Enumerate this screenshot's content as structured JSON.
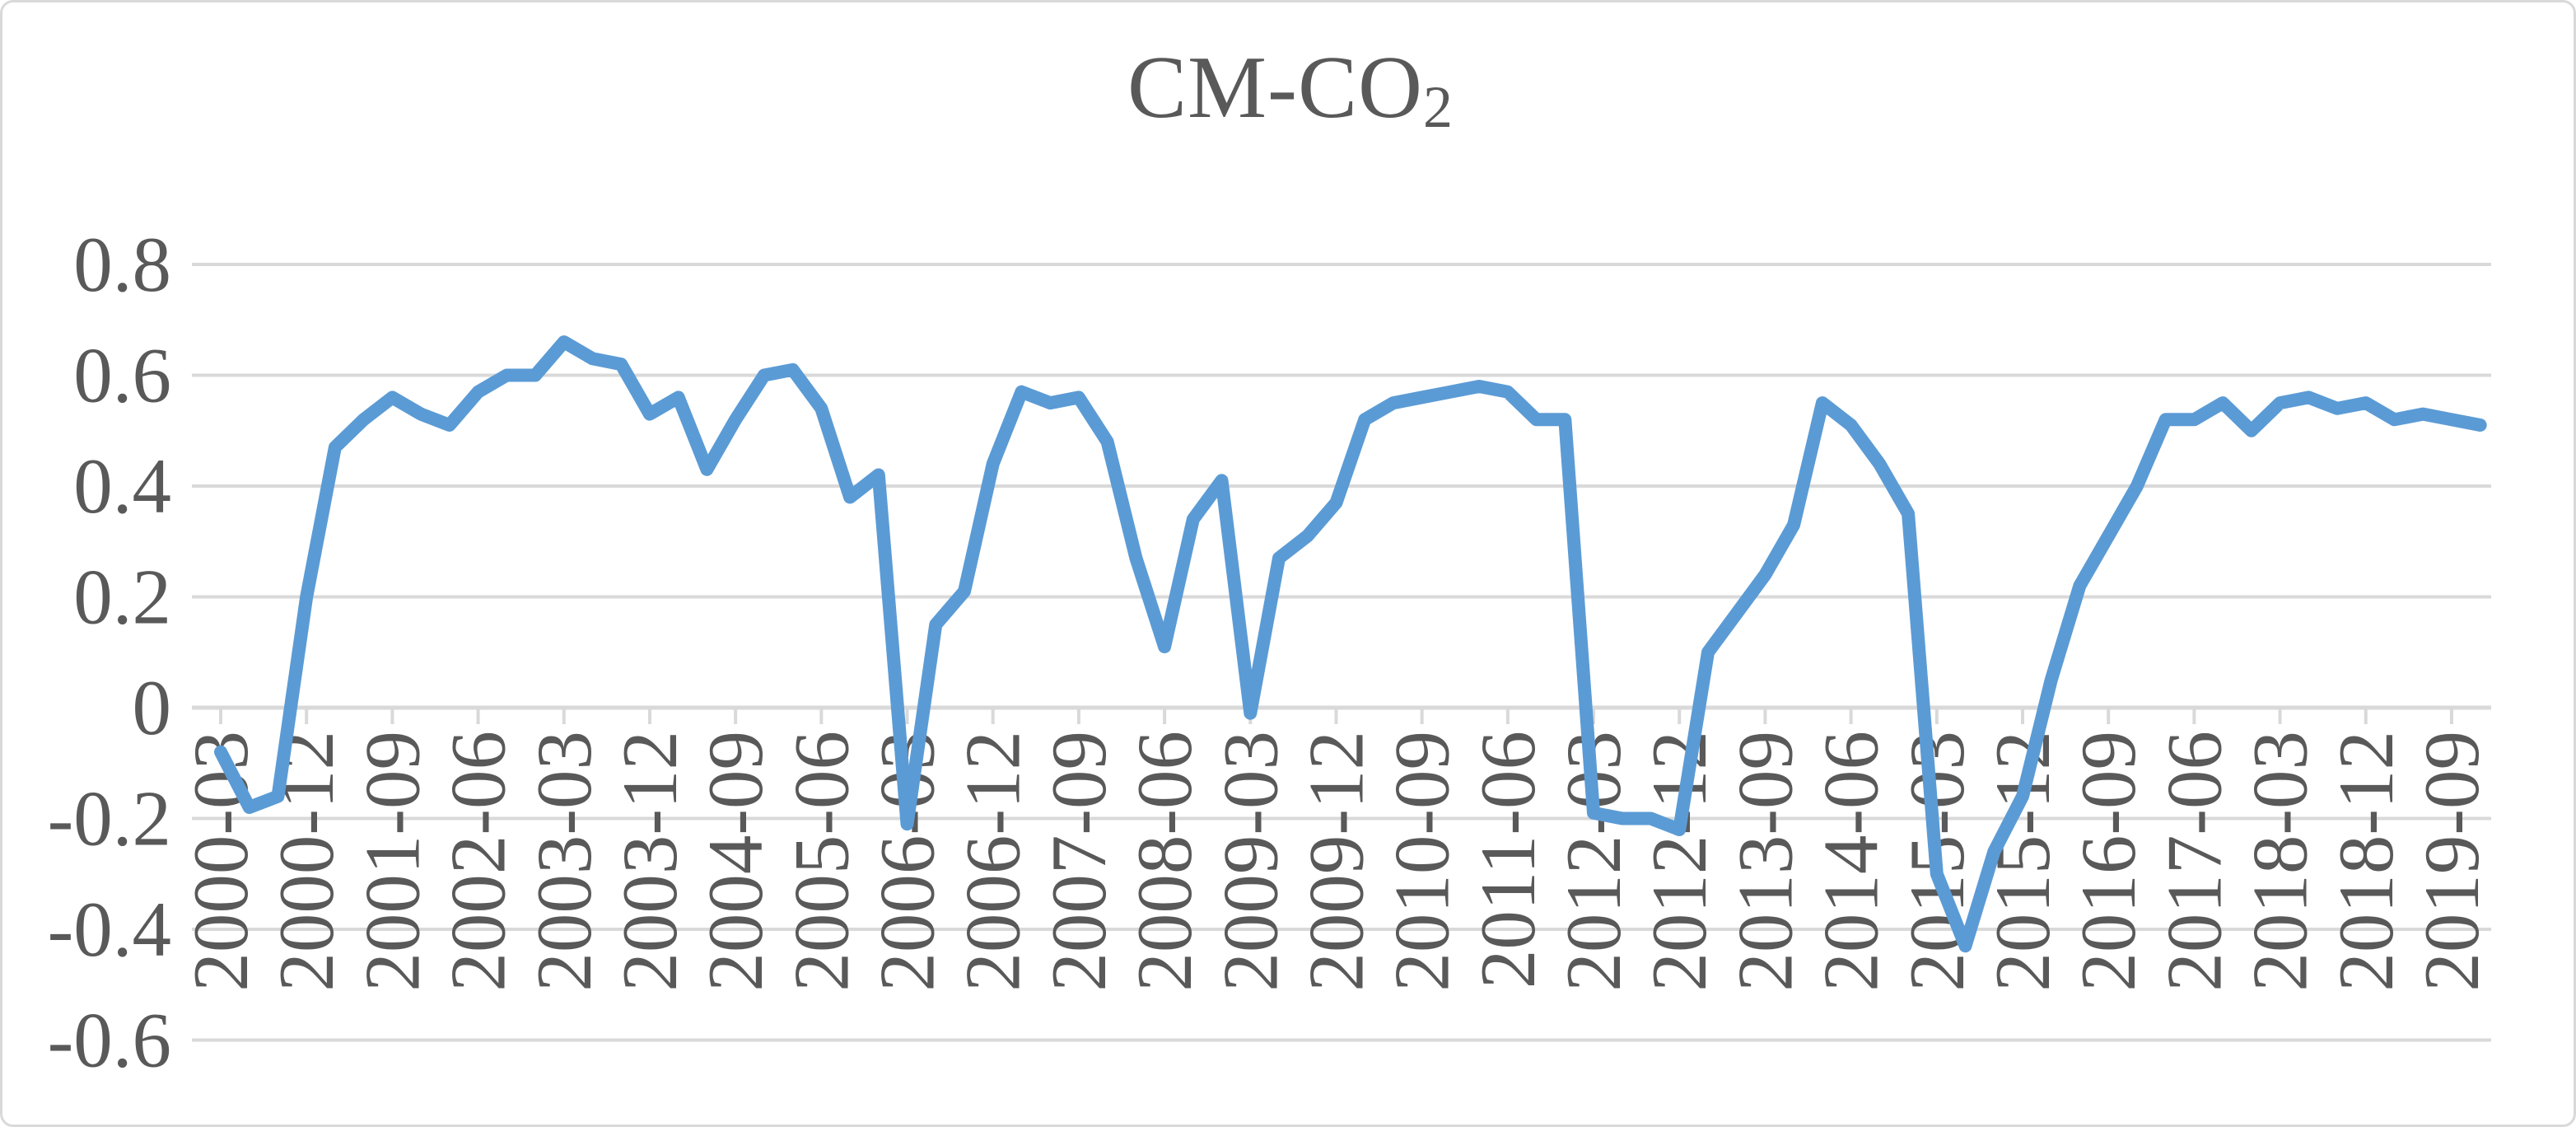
{
  "chart": {
    "title_main": "CM-CO",
    "title_sub": "2"
  },
  "chart_data": {
    "type": "line",
    "title": "CM-CO2 (2 subscript)",
    "xlabel": "",
    "ylabel": "",
    "legend": "none",
    "grid": "horizontal",
    "line_color": "#5B9BD5",
    "grid_color": "#D9D9D9",
    "text_color": "#595959",
    "x_label_rotation": -90,
    "ylim": [
      -0.6,
      0.8
    ],
    "y_ticks": {
      "labels": [
        "0.8",
        "0.6",
        "0.4",
        "0.2",
        "0",
        "-0.2",
        "-0.4",
        "-0.6"
      ],
      "values": [
        0.8,
        0.6,
        0.4,
        0.2,
        0,
        -0.2,
        -0.4,
        -0.6
      ]
    },
    "x_tick_labels": [
      "2000-03",
      "2000-12",
      "2001-09",
      "2002-06",
      "2003-03",
      "2003-12",
      "2004-09",
      "2005-06",
      "2006-03",
      "2006-12",
      "2007-09",
      "2008-06",
      "2009-03",
      "2009-12",
      "2010-09",
      "2011-06",
      "2012-03",
      "2012-12",
      "2013-09",
      "2014-06",
      "2015-03",
      "2015-12",
      "2016-09",
      "2017-06",
      "2018-03",
      "2018-12",
      "2019-09"
    ],
    "categories": [
      "2000-03",
      "2000-06",
      "2000-09",
      "2000-12",
      "2001-03",
      "2001-06",
      "2001-09",
      "2001-12",
      "2002-03",
      "2002-06",
      "2002-09",
      "2002-12",
      "2003-03",
      "2003-06",
      "2003-09",
      "2003-12",
      "2004-03",
      "2004-06",
      "2004-09",
      "2004-12",
      "2005-03",
      "2005-06",
      "2005-09",
      "2005-12",
      "2006-03",
      "2006-06",
      "2006-09",
      "2006-12",
      "2007-03",
      "2007-06",
      "2007-09",
      "2007-12",
      "2008-03",
      "2008-06",
      "2008-09",
      "2008-12",
      "2009-03",
      "2009-06",
      "2009-09",
      "2009-12",
      "2010-03",
      "2010-06",
      "2010-09",
      "2010-12",
      "2011-03",
      "2011-06",
      "2011-09",
      "2011-12",
      "2012-03",
      "2012-06",
      "2012-09",
      "2012-12",
      "2013-03",
      "2013-06",
      "2013-09",
      "2013-12",
      "2014-03",
      "2014-06",
      "2014-09",
      "2014-12",
      "2015-03",
      "2015-06",
      "2015-09",
      "2015-12",
      "2016-03",
      "2016-06",
      "2016-09",
      "2016-12",
      "2017-03",
      "2017-06",
      "2017-09",
      "2017-12",
      "2018-03",
      "2018-06",
      "2018-09",
      "2018-12",
      "2019-03",
      "2019-06",
      "2019-09",
      "2019-12"
    ],
    "values": [
      -0.08,
      -0.18,
      -0.16,
      0.2,
      0.47,
      0.52,
      0.56,
      0.53,
      0.51,
      0.57,
      0.6,
      0.6,
      0.66,
      0.63,
      0.62,
      0.53,
      0.56,
      0.43,
      0.52,
      0.6,
      0.61,
      0.54,
      0.38,
      0.42,
      -0.21,
      0.15,
      0.21,
      0.44,
      0.57,
      0.55,
      0.56,
      0.48,
      0.27,
      0.11,
      0.34,
      0.41,
      -0.01,
      0.27,
      0.31,
      0.37,
      0.52,
      0.55,
      0.56,
      0.57,
      0.58,
      0.57,
      0.52,
      0.52,
      -0.19,
      -0.2,
      -0.2,
      -0.22,
      0.1,
      0.17,
      0.24,
      0.33,
      0.55,
      0.51,
      0.44,
      0.35,
      -0.3,
      -0.43,
      -0.26,
      -0.16,
      0.05,
      0.22,
      0.31,
      0.4,
      0.52,
      0.52,
      0.55,
      0.5,
      0.55,
      0.56,
      0.54,
      0.55,
      0.52,
      0.53,
      0.52,
      0.51
    ]
  }
}
